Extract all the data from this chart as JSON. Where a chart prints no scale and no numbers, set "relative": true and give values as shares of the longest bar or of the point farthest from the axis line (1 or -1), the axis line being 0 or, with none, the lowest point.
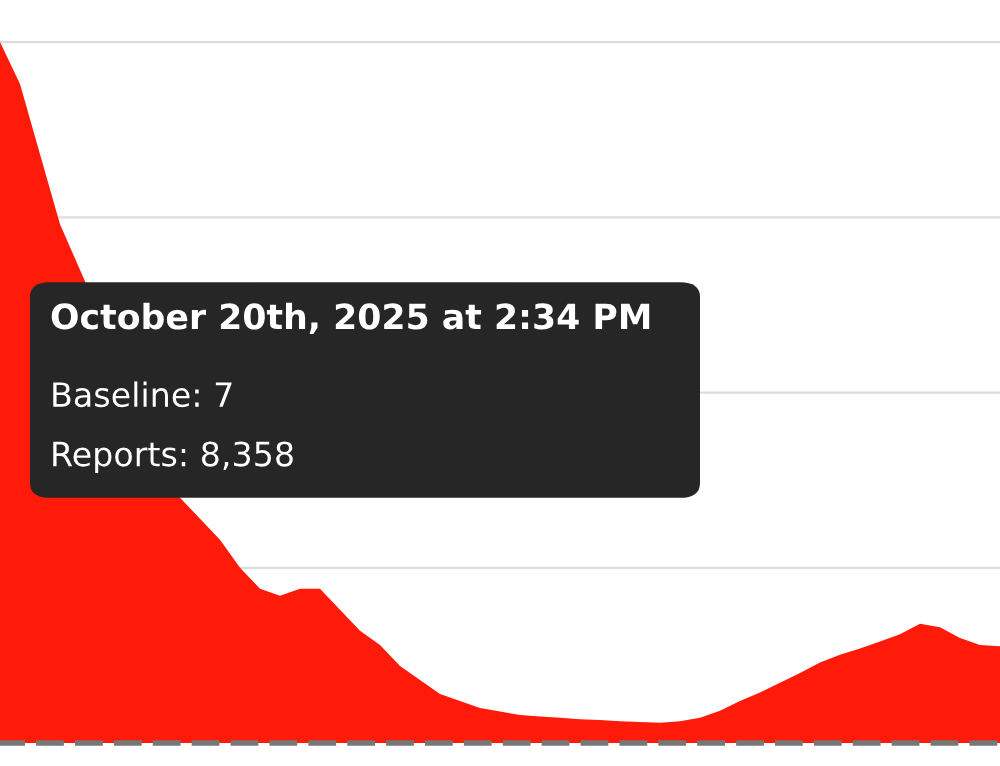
{
  "chart_data": {
    "type": "area",
    "relative": true,
    "grid": "y",
    "line_style": "dashed",
    "categories": [
      null,
      null,
      null,
      null,
      null,
      null,
      null,
      null,
      null,
      null,
      null,
      null,
      null,
      null,
      null,
      null,
      null,
      null,
      null,
      null,
      null,
      null,
      null,
      null,
      null,
      null,
      null,
      null,
      null,
      null,
      null,
      null,
      null,
      null,
      null,
      null,
      null,
      null,
      null,
      null,
      null,
      null,
      null,
      null,
      null,
      null,
      null,
      null,
      null,
      null,
      null
    ],
    "series": [
      {
        "color": "#ff1a0a",
        "values": [
          1,
          0.94,
          0.84,
          0.74,
          null,
          null,
          null,
          null,
          null,
          0.35,
          0.32,
          0.29,
          0.25,
          0.22,
          0.21,
          0.22,
          0.22,
          0.19,
          0.16,
          0.14,
          0.11,
          0.09,
          0.07,
          0.06,
          0.05,
          0.045,
          0.04,
          0.038,
          0.036,
          0.034,
          0.033,
          0.031,
          0.03,
          0.029,
          0.031,
          0.036,
          0.046,
          0.06,
          0.072,
          0.086,
          0.1,
          0.115,
          0.126,
          0.135,
          0.145,
          0.155,
          0.17,
          0.165,
          0.15,
          0.14,
          0.138
        ]
      }
    ],
    "annotations": [
      "October 20th, 2025 at 2:34 PM",
      "Baseline: 7",
      "Reports: 8,358"
    ]
  }
}
